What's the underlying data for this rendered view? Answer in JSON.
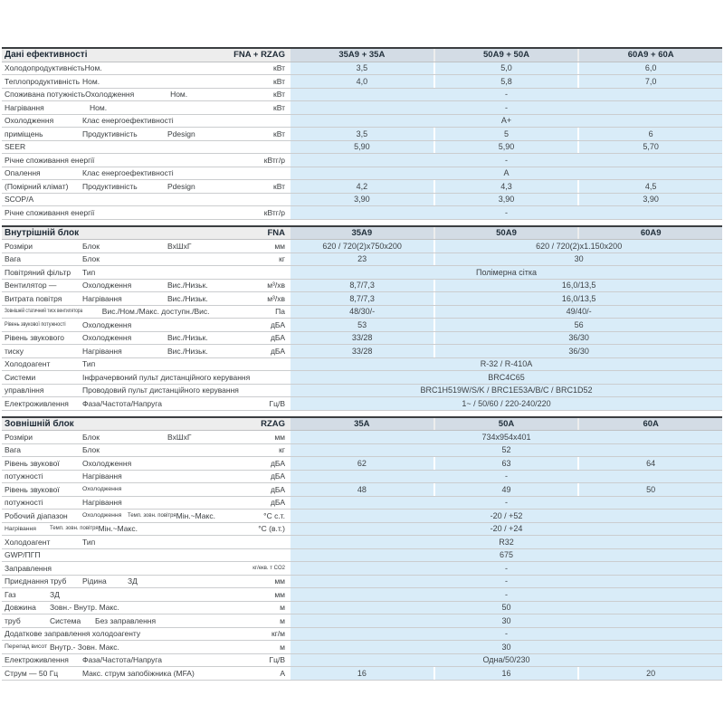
{
  "colors": {
    "value_cell": "#d9ecf8",
    "column_header": "#d3dce5",
    "section_border": "#3b3e41",
    "row_border": "#cbcdcf"
  },
  "sections": [
    {
      "title": "Дані ефективності",
      "code": "FNA + RZAG",
      "columns": [
        "35A9 + 35A",
        "50A9 + 50A",
        "60A9 + 60A"
      ],
      "rows": [
        {
          "label": [
            {
              "t": "Холодопродуктивність",
              "c": 1
            },
            {
              "t": "Ном.",
              "c": 2
            }
          ],
          "unit": "кВт",
          "cells": [
            {
              "t": "3,5"
            },
            {
              "t": "5,0"
            },
            {
              "t": "6,0"
            }
          ]
        },
        {
          "label": [
            {
              "t": "Теплопродуктивність",
              "c": 1
            },
            {
              "t": "Ном.",
              "c": 2
            }
          ],
          "unit": "кВт",
          "cells": [
            {
              "t": "4,0"
            },
            {
              "t": "5,8"
            },
            {
              "t": "7,0"
            }
          ]
        },
        {
          "label": [
            {
              "t": "Споживана потужність",
              "c": 1
            },
            {
              "t": "Охолодження",
              "c": 2
            },
            {
              "t": "Ном.",
              "c": 3
            }
          ],
          "unit": "кВт",
          "cells": [
            {
              "t": "-",
              "span": 3
            }
          ]
        },
        {
          "label": [
            {
              "t": "Нагрівання",
              "c": 2
            },
            {
              "t": "Ном.",
              "c": 3
            }
          ],
          "unit": "кВт",
          "cells": [
            {
              "t": "-",
              "span": 3
            }
          ]
        },
        {
          "label": [
            {
              "t": "Охолодження",
              "c": 1
            },
            {
              "t": "Клас енергоефективності",
              "c": 2
            }
          ],
          "cells": [
            {
              "t": "A+",
              "span": 3
            }
          ]
        },
        {
          "label": [
            {
              "t": "приміщень",
              "c": 1
            },
            {
              "t": "Продуктивність",
              "c": 2
            },
            {
              "t": "Pdesign",
              "c": 3
            }
          ],
          "unit": "кВт",
          "cells": [
            {
              "t": "3,5"
            },
            {
              "t": "5"
            },
            {
              "t": "6"
            }
          ]
        },
        {
          "label": [
            {
              "t": "SEER",
              "c": 2
            }
          ],
          "cells": [
            {
              "t": "5,90"
            },
            {
              "t": "5,90"
            },
            {
              "t": "5,70"
            }
          ]
        },
        {
          "label": [
            {
              "t": "Річне споживання енергії",
              "c": 2
            }
          ],
          "unit": "кВтг/р",
          "cells": [
            {
              "t": "-",
              "span": 3
            }
          ]
        },
        {
          "label": [
            {
              "t": "Опалення",
              "c": 1
            },
            {
              "t": "Клас енергоефективності",
              "c": 2
            }
          ],
          "cells": [
            {
              "t": "A",
              "span": 3
            }
          ]
        },
        {
          "label": [
            {
              "t": "(Помірний клімат)",
              "c": 1
            },
            {
              "t": "Продуктивність",
              "c": 2
            },
            {
              "t": "Pdesign",
              "c": 3
            }
          ],
          "unit": "кВт",
          "cells": [
            {
              "t": "4,2"
            },
            {
              "t": "4,3"
            },
            {
              "t": "4,5"
            }
          ]
        },
        {
          "label": [
            {
              "t": "SCOP/A",
              "c": 2
            }
          ],
          "cells": [
            {
              "t": "3,90"
            },
            {
              "t": "3,90"
            },
            {
              "t": "3,90"
            }
          ]
        },
        {
          "label": [
            {
              "t": "Річне споживання енергії",
              "c": 2
            }
          ],
          "unit": "кВтг/р",
          "cells": [
            {
              "t": "-",
              "span": 3
            }
          ]
        }
      ]
    },
    {
      "title": "Внутрішній блок",
      "code": "FNA",
      "columns": [
        "35A9",
        "50A9",
        "60A9"
      ],
      "rows": [
        {
          "label": [
            {
              "t": "Розміри",
              "c": 1
            },
            {
              "t": "Блок",
              "c": 2
            },
            {
              "t": "ВхШхГ",
              "c": 3
            }
          ],
          "unit": "мм",
          "cells": [
            {
              "t": "620 / 720(2)x750x200"
            },
            {
              "t": "620 / 720(2)x1.150x200",
              "span": 2
            }
          ]
        },
        {
          "label": [
            {
              "t": "Вага",
              "c": 1
            },
            {
              "t": "Блок",
              "c": 2
            }
          ],
          "unit": "кг",
          "cells": [
            {
              "t": "23"
            },
            {
              "t": "30",
              "span": 2
            }
          ]
        },
        {
          "label": [
            {
              "t": "Повітряний фільтр",
              "c": 1
            },
            {
              "t": "Тип",
              "c": 2
            }
          ],
          "cells": [
            {
              "t": "Полімерна сітка",
              "span": 3
            }
          ]
        },
        {
          "label": [
            {
              "t": "Вентилятор —",
              "c": 1
            },
            {
              "t": "Охолодження",
              "c": 2
            },
            {
              "t": "Вис./Низьк.",
              "c": 3
            }
          ],
          "unit": "м³/хв",
          "cells": [
            {
              "t": "8,7/7,3"
            },
            {
              "t": "16,0/13,5",
              "span": 2
            }
          ]
        },
        {
          "label": [
            {
              "t": "Витрата повітря",
              "c": 1
            },
            {
              "t": "Нагрівання",
              "c": 2
            },
            {
              "t": "Вис./Низьк.",
              "c": 3
            }
          ],
          "unit": "м³/хв",
          "cells": [
            {
              "t": "8,7/7,3"
            },
            {
              "t": "16,0/13,5",
              "span": 2
            }
          ]
        },
        {
          "label": [
            {
              "t": "Зовнішній статичний тиск вентилятора",
              "c": 1,
              "s": 2,
              "cond": true
            },
            {
              "t": "Вис./Ном./Макс. доступн./Вис.",
              "c": 2
            }
          ],
          "unit": "Па",
          "cells": [
            {
              "t": "48/30/-"
            },
            {
              "t": "49/40/-",
              "span": 2
            }
          ]
        },
        {
          "label": [
            {
              "t": "Рівень звукової потужності",
              "c": 1,
              "s": 1,
              "cond": true
            },
            {
              "t": "Охолодження",
              "c": 2
            }
          ],
          "unit": "дБА",
          "cells": [
            {
              "t": "53"
            },
            {
              "t": "56",
              "span": 2
            }
          ]
        },
        {
          "label": [
            {
              "t": "Рівень звукового",
              "c": 1
            },
            {
              "t": "Охолодження",
              "c": 2
            },
            {
              "t": "Вис./Низьк.",
              "c": 3
            }
          ],
          "unit": "дБА",
          "cells": [
            {
              "t": "33/28"
            },
            {
              "t": "36/30",
              "span": 2
            }
          ]
        },
        {
          "label": [
            {
              "t": "тиску",
              "c": 1
            },
            {
              "t": "Нагрівання",
              "c": 2
            },
            {
              "t": "Вис./Низьк.",
              "c": 3
            }
          ],
          "unit": "дБА",
          "cells": [
            {
              "t": "33/28"
            },
            {
              "t": "36/30",
              "span": 2
            }
          ]
        },
        {
          "label": [
            {
              "t": "Холодоагент",
              "c": 1
            },
            {
              "t": "Тип",
              "c": 2
            }
          ],
          "cells": [
            {
              "t": "R-32 / R-410A",
              "span": 3
            }
          ]
        },
        {
          "label": [
            {
              "t": "Системи",
              "c": 1
            },
            {
              "t": "Інфрачервоний пульт дистанційного керування",
              "c": 2
            }
          ],
          "cells": [
            {
              "t": "BRC4C65",
              "span": 3
            }
          ]
        },
        {
          "label": [
            {
              "t": "управління",
              "c": 1
            },
            {
              "t": "Проводовий пульт дистанційного керування",
              "c": 2
            }
          ],
          "cells": [
            {
              "t": "BRC1H519W/S/K / BRC1E53A/B/C / BRC1D52",
              "span": 3
            }
          ]
        },
        {
          "label": [
            {
              "t": "Електроживлення",
              "c": 1
            },
            {
              "t": "Фаза/Частота/Напруга",
              "c": 2
            }
          ],
          "unit": "Гц/В",
          "cells": [
            {
              "t": "1~ / 50/60 / 220-240/220",
              "span": 3
            }
          ]
        }
      ]
    },
    {
      "title": "Зовнішній блок",
      "code": "RZAG",
      "columns": [
        "35A",
        "50A",
        "60A"
      ],
      "rows": [
        {
          "label": [
            {
              "t": "Розміри",
              "c": 1
            },
            {
              "t": "Блок",
              "c": 2
            },
            {
              "t": "ВхШхГ",
              "c": 3
            }
          ],
          "unit": "мм",
          "cells": [
            {
              "t": "734x954x401",
              "span": 3
            }
          ]
        },
        {
          "label": [
            {
              "t": "Вага",
              "c": 1
            },
            {
              "t": "Блок",
              "c": 2
            }
          ],
          "unit": "кг",
          "cells": [
            {
              "t": "52",
              "span": 3
            }
          ]
        },
        {
          "label": [
            {
              "t": "Рівень звукової",
              "c": 1
            },
            {
              "t": "Охолодження",
              "c": 2
            }
          ],
          "unit": "дБА",
          "cells": [
            {
              "t": "62"
            },
            {
              "t": "63"
            },
            {
              "t": "64"
            }
          ]
        },
        {
          "label": [
            {
              "t": "потужності",
              "c": 1
            },
            {
              "t": "Нагрівання",
              "c": 2
            }
          ],
          "unit": "дБА",
          "cells": [
            {
              "t": "-",
              "span": 3
            }
          ]
        },
        {
          "label": [
            {
              "t": "Рівень звукової",
              "c": 1
            },
            {
              "t": "Охолодження",
              "c": 2,
              "s": 1
            }
          ],
          "unit": "дБА",
          "cells": [
            {
              "t": "48"
            },
            {
              "t": "49"
            },
            {
              "t": "50"
            }
          ]
        },
        {
          "label": [
            {
              "t": "потужності",
              "c": 1
            },
            {
              "t": "Нагрівання",
              "c": 2
            }
          ],
          "unit": "дБА",
          "cells": [
            {
              "t": "-",
              "span": 3
            }
          ]
        },
        {
          "label": [
            {
              "t": "Робочий діапазон",
              "c": 1
            },
            {
              "t": "Охолодження",
              "c": 2,
              "s": 1,
              "w": "n"
            },
            {
              "t": "Темп. зовн. повітря",
              "c": 3,
              "s": 2,
              "w": "n"
            },
            {
              "t": "Мін.~Макс.",
              "c": 4
            }
          ],
          "unit": "°C с.т.",
          "cells": [
            {
              "t": "-20 / +52",
              "span": 3
            }
          ]
        },
        {
          "label": [
            {
              "t": "Нагрівання",
              "c": 2,
              "s": 1,
              "w": "n"
            },
            {
              "t": "Темп. зовн. повітря",
              "c": 3,
              "s": 2,
              "w": "n"
            },
            {
              "t": "Мін.~Макс.",
              "c": 4
            }
          ],
          "unit": "°C (в.т.)",
          "cells": [
            {
              "t": "-20 / +24",
              "span": 3
            }
          ]
        },
        {
          "label": [
            {
              "t": "Холодоагент",
              "c": 1
            },
            {
              "t": "Тип",
              "c": 2
            }
          ],
          "cells": [
            {
              "t": "R32",
              "span": 3
            }
          ]
        },
        {
          "label": [
            {
              "t": "GWP/ПГП",
              "c": 2
            }
          ],
          "cells": [
            {
              "t": "675",
              "span": 3
            }
          ]
        },
        {
          "label": [
            {
              "t": "Заправлення",
              "c": 2
            }
          ],
          "unit": "кг/екв. т CO2",
          "usm": true,
          "cells": [
            {
              "t": "-",
              "span": 3
            }
          ]
        },
        {
          "label": [
            {
              "t": "Приєднання труб",
              "c": 1
            },
            {
              "t": "Рідина",
              "c": 2,
              "w": "n"
            },
            {
              "t": "ЗД",
              "c": 3
            }
          ],
          "unit": "мм",
          "cells": [
            {
              "t": "-",
              "span": 3
            }
          ]
        },
        {
          "label": [
            {
              "t": "Газ",
              "c": 2,
              "w": "n"
            },
            {
              "t": "ЗД",
              "c": 3
            }
          ],
          "unit": "мм",
          "cells": [
            {
              "t": "-",
              "span": 3
            }
          ]
        },
        {
          "label": [
            {
              "t": "Довжина",
              "c": 2,
              "w": "n"
            },
            {
              "t": "Зовн.- Внутр. Макс.",
              "c": 3
            }
          ],
          "unit": "м",
          "cells": [
            {
              "t": "50",
              "span": 3
            }
          ]
        },
        {
          "label": [
            {
              "t": "труб",
              "c": 2,
              "w": "n"
            },
            {
              "t": "Система",
              "c": 3,
              "w": "n"
            },
            {
              "t": "Без заправлення",
              "c": 4
            }
          ],
          "unit": "м",
          "cells": [
            {
              "t": "30",
              "span": 3
            }
          ]
        },
        {
          "label": [
            {
              "t": "Додаткове заправлення холодоагенту",
              "c": 2
            }
          ],
          "unit": "кг/м",
          "cells": [
            {
              "t": "-",
              "span": 3
            }
          ]
        },
        {
          "label": [
            {
              "t": "Перепад висот",
              "c": 2,
              "s": 1,
              "w": "n"
            },
            {
              "t": "Внутр.- Зовн. Макс.",
              "c": 3
            }
          ],
          "unit": "м",
          "cells": [
            {
              "t": "30",
              "span": 3
            }
          ]
        },
        {
          "label": [
            {
              "t": "Електроживлення",
              "c": 1
            },
            {
              "t": "Фаза/Частота/Напруга",
              "c": 2
            }
          ],
          "unit": "Гц/В",
          "cells": [
            {
              "t": "Одна/50/230",
              "span": 3
            }
          ]
        },
        {
          "label": [
            {
              "t": "Струм — 50 Гц",
              "c": 1
            },
            {
              "t": "Макс. струм запобіжника (MFA)",
              "c": 2
            }
          ],
          "unit": "А",
          "cells": [
            {
              "t": "16"
            },
            {
              "t": "16"
            },
            {
              "t": "20"
            }
          ]
        }
      ]
    }
  ]
}
